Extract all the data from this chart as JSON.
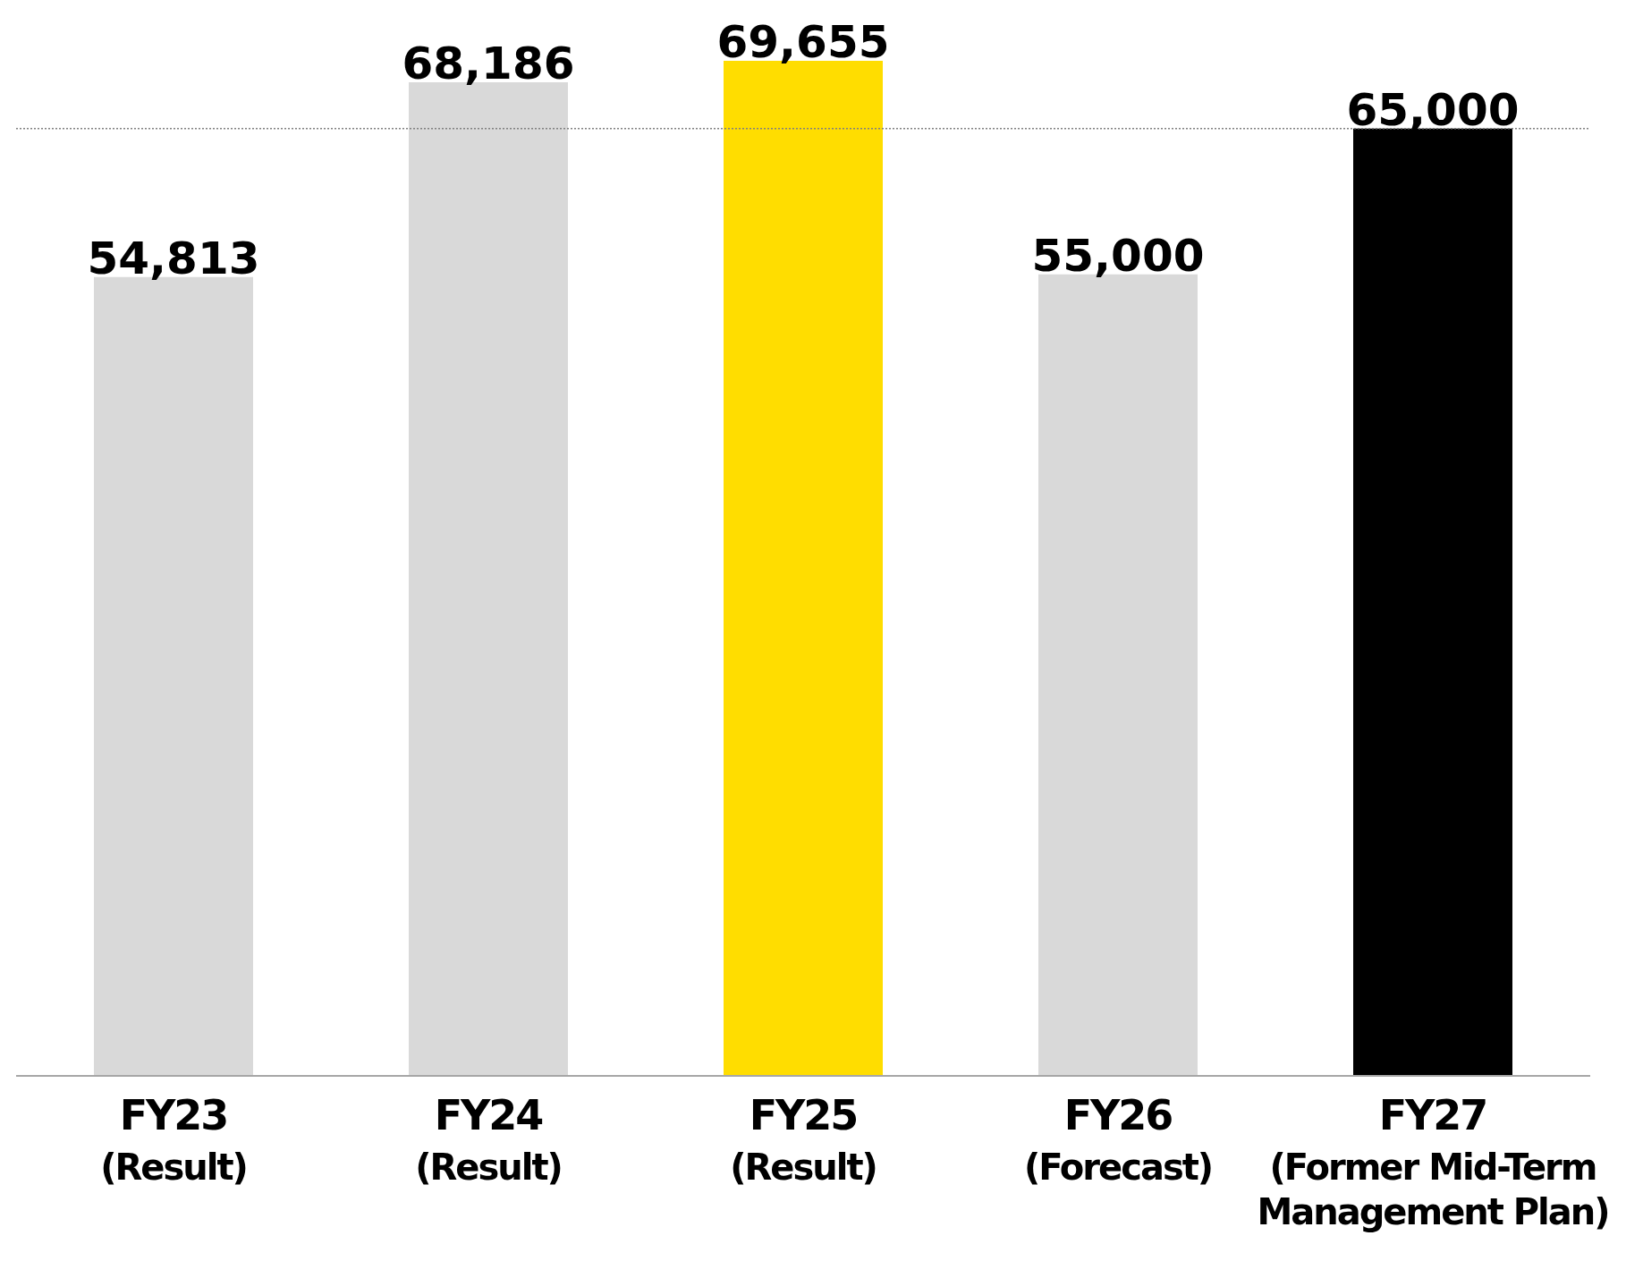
{
  "chart_data": {
    "type": "bar",
    "categories": [
      "FY23\n(Result)",
      "FY24\n(Result)",
      "FY25\n(Result)",
      "FY26\n(Forecast)",
      "FY27\n(Former Mid-Term Management Plan)"
    ],
    "values": [
      54813,
      68186,
      69655,
      55000,
      65000
    ],
    "colors": [
      "#d9d9d9",
      "#d9d9d9",
      "#ffdd00",
      "#d9d9d9",
      "#000000"
    ],
    "value_labels": [
      "54,813",
      "68,186",
      "69,655",
      "55,000",
      "65,000"
    ],
    "ref_lines": [
      {
        "axis": "y",
        "value": 65000,
        "color": "#808080",
        "line_style": "dotted"
      }
    ]
  }
}
